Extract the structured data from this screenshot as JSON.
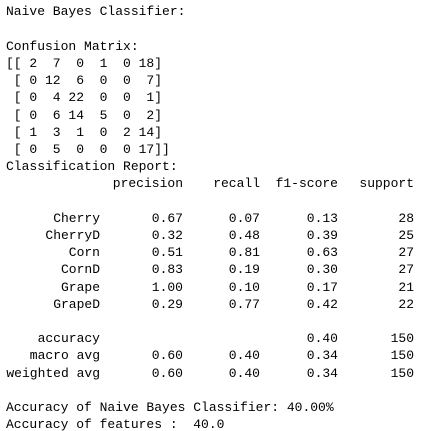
{
  "title": "Naive Bayes Classifier:",
  "confusion_matrix": {
    "title": "Confusion Matrix:",
    "lines": [
      "[[ 2  7  0  1  0 18]",
      " [ 0 12  6  0  0  7]",
      " [ 0  4 22  0  0  1]",
      " [ 0  6 14  5  0  2]",
      " [ 1  3  1  0  2 14]",
      " [ 0  5  0  0  0 17]]"
    ]
  },
  "report": {
    "title": "Classification Report:",
    "columns": [
      "precision",
      "recall",
      "f1-score",
      "support"
    ],
    "rows": [
      {
        "label": "Cherry",
        "values": [
          "0.67",
          "0.07",
          "0.13",
          28
        ]
      },
      {
        "label": "CherryD",
        "values": [
          "0.32",
          "0.48",
          "0.39",
          25
        ]
      },
      {
        "label": "Corn",
        "values": [
          "0.51",
          "0.81",
          "0.63",
          27
        ]
      },
      {
        "label": "CornD",
        "values": [
          "0.83",
          "0.19",
          "0.30",
          27
        ]
      },
      {
        "label": "Grape",
        "values": [
          "1.00",
          "0.10",
          "0.17",
          21
        ]
      },
      {
        "label": "GrapeD",
        "values": [
          "0.29",
          "0.77",
          "0.42",
          22
        ]
      }
    ],
    "summary": [
      {
        "label": "accuracy",
        "values": [
          null,
          null,
          "0.40",
          150
        ]
      },
      {
        "label": "macro avg",
        "values": [
          "0.60",
          "0.40",
          "0.34",
          150
        ]
      },
      {
        "label": "weighted avg",
        "values": [
          "0.60",
          "0.40",
          "0.34",
          150
        ]
      }
    ]
  },
  "results": [
    "Accuracy of Naive Bayes Classifier: 40.00%",
    "Accuracy of features :  40.0"
  ]
}
